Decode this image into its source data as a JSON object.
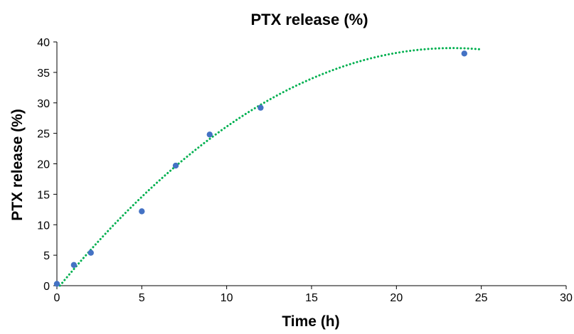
{
  "chart_data": {
    "type": "scatter",
    "title": "PTX release (%)",
    "xlabel": "Time (h)",
    "ylabel": "PTX release (%)",
    "xlim": [
      0,
      30
    ],
    "ylim": [
      0,
      40
    ],
    "x_ticks": [
      0,
      5,
      10,
      15,
      20,
      25,
      30
    ],
    "y_ticks": [
      0,
      5,
      10,
      15,
      20,
      25,
      30,
      35,
      40
    ],
    "grid": false,
    "legend": "none",
    "series": [
      {
        "x": [
          0,
          1,
          2,
          5,
          7,
          9,
          12,
          24
        ],
        "y": [
          0.3,
          3.4,
          5.4,
          12.2,
          19.7,
          24.8,
          29.2,
          38.1
        ],
        "color": "#4472C4"
      }
    ],
    "trendline": {
      "type": "polynomial",
      "order": 2,
      "x_range": [
        0,
        25
      ],
      "coefficients": [
        -0.6,
        3.4,
        -0.073
      ],
      "color": "#00B050",
      "style": "dotted"
    }
  }
}
